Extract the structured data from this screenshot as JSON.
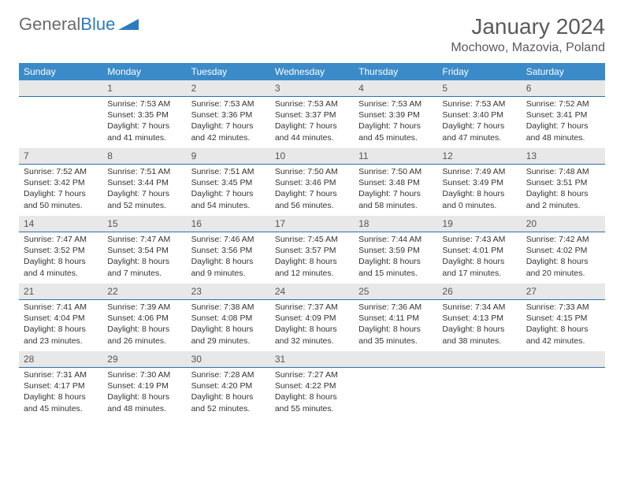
{
  "logo": {
    "text1": "General",
    "text2": "Blue"
  },
  "title": "January 2024",
  "location": "Mochowo, Mazovia, Poland",
  "colors": {
    "header_bg": "#3b8bc9",
    "header_text": "#ffffff",
    "daynum_bg": "#e8e8e8",
    "daynum_border": "#2f6fa8",
    "body_text": "#333333",
    "page_bg": "#ffffff",
    "logo_gray": "#6b6b6b",
    "logo_blue": "#2b7bbf",
    "title_color": "#5a5a5a"
  },
  "weekdays": [
    "Sunday",
    "Monday",
    "Tuesday",
    "Wednesday",
    "Thursday",
    "Friday",
    "Saturday"
  ],
  "weeks": [
    [
      null,
      {
        "n": "1",
        "sr": "Sunrise: 7:53 AM",
        "ss": "Sunset: 3:35 PM",
        "d1": "Daylight: 7 hours",
        "d2": "and 41 minutes."
      },
      {
        "n": "2",
        "sr": "Sunrise: 7:53 AM",
        "ss": "Sunset: 3:36 PM",
        "d1": "Daylight: 7 hours",
        "d2": "and 42 minutes."
      },
      {
        "n": "3",
        "sr": "Sunrise: 7:53 AM",
        "ss": "Sunset: 3:37 PM",
        "d1": "Daylight: 7 hours",
        "d2": "and 44 minutes."
      },
      {
        "n": "4",
        "sr": "Sunrise: 7:53 AM",
        "ss": "Sunset: 3:39 PM",
        "d1": "Daylight: 7 hours",
        "d2": "and 45 minutes."
      },
      {
        "n": "5",
        "sr": "Sunrise: 7:53 AM",
        "ss": "Sunset: 3:40 PM",
        "d1": "Daylight: 7 hours",
        "d2": "and 47 minutes."
      },
      {
        "n": "6",
        "sr": "Sunrise: 7:52 AM",
        "ss": "Sunset: 3:41 PM",
        "d1": "Daylight: 7 hours",
        "d2": "and 48 minutes."
      }
    ],
    [
      {
        "n": "7",
        "sr": "Sunrise: 7:52 AM",
        "ss": "Sunset: 3:42 PM",
        "d1": "Daylight: 7 hours",
        "d2": "and 50 minutes."
      },
      {
        "n": "8",
        "sr": "Sunrise: 7:51 AM",
        "ss": "Sunset: 3:44 PM",
        "d1": "Daylight: 7 hours",
        "d2": "and 52 minutes."
      },
      {
        "n": "9",
        "sr": "Sunrise: 7:51 AM",
        "ss": "Sunset: 3:45 PM",
        "d1": "Daylight: 7 hours",
        "d2": "and 54 minutes."
      },
      {
        "n": "10",
        "sr": "Sunrise: 7:50 AM",
        "ss": "Sunset: 3:46 PM",
        "d1": "Daylight: 7 hours",
        "d2": "and 56 minutes."
      },
      {
        "n": "11",
        "sr": "Sunrise: 7:50 AM",
        "ss": "Sunset: 3:48 PM",
        "d1": "Daylight: 7 hours",
        "d2": "and 58 minutes."
      },
      {
        "n": "12",
        "sr": "Sunrise: 7:49 AM",
        "ss": "Sunset: 3:49 PM",
        "d1": "Daylight: 8 hours",
        "d2": "and 0 minutes."
      },
      {
        "n": "13",
        "sr": "Sunrise: 7:48 AM",
        "ss": "Sunset: 3:51 PM",
        "d1": "Daylight: 8 hours",
        "d2": "and 2 minutes."
      }
    ],
    [
      {
        "n": "14",
        "sr": "Sunrise: 7:47 AM",
        "ss": "Sunset: 3:52 PM",
        "d1": "Daylight: 8 hours",
        "d2": "and 4 minutes."
      },
      {
        "n": "15",
        "sr": "Sunrise: 7:47 AM",
        "ss": "Sunset: 3:54 PM",
        "d1": "Daylight: 8 hours",
        "d2": "and 7 minutes."
      },
      {
        "n": "16",
        "sr": "Sunrise: 7:46 AM",
        "ss": "Sunset: 3:56 PM",
        "d1": "Daylight: 8 hours",
        "d2": "and 9 minutes."
      },
      {
        "n": "17",
        "sr": "Sunrise: 7:45 AM",
        "ss": "Sunset: 3:57 PM",
        "d1": "Daylight: 8 hours",
        "d2": "and 12 minutes."
      },
      {
        "n": "18",
        "sr": "Sunrise: 7:44 AM",
        "ss": "Sunset: 3:59 PM",
        "d1": "Daylight: 8 hours",
        "d2": "and 15 minutes."
      },
      {
        "n": "19",
        "sr": "Sunrise: 7:43 AM",
        "ss": "Sunset: 4:01 PM",
        "d1": "Daylight: 8 hours",
        "d2": "and 17 minutes."
      },
      {
        "n": "20",
        "sr": "Sunrise: 7:42 AM",
        "ss": "Sunset: 4:02 PM",
        "d1": "Daylight: 8 hours",
        "d2": "and 20 minutes."
      }
    ],
    [
      {
        "n": "21",
        "sr": "Sunrise: 7:41 AM",
        "ss": "Sunset: 4:04 PM",
        "d1": "Daylight: 8 hours",
        "d2": "and 23 minutes."
      },
      {
        "n": "22",
        "sr": "Sunrise: 7:39 AM",
        "ss": "Sunset: 4:06 PM",
        "d1": "Daylight: 8 hours",
        "d2": "and 26 minutes."
      },
      {
        "n": "23",
        "sr": "Sunrise: 7:38 AM",
        "ss": "Sunset: 4:08 PM",
        "d1": "Daylight: 8 hours",
        "d2": "and 29 minutes."
      },
      {
        "n": "24",
        "sr": "Sunrise: 7:37 AM",
        "ss": "Sunset: 4:09 PM",
        "d1": "Daylight: 8 hours",
        "d2": "and 32 minutes."
      },
      {
        "n": "25",
        "sr": "Sunrise: 7:36 AM",
        "ss": "Sunset: 4:11 PM",
        "d1": "Daylight: 8 hours",
        "d2": "and 35 minutes."
      },
      {
        "n": "26",
        "sr": "Sunrise: 7:34 AM",
        "ss": "Sunset: 4:13 PM",
        "d1": "Daylight: 8 hours",
        "d2": "and 38 minutes."
      },
      {
        "n": "27",
        "sr": "Sunrise: 7:33 AM",
        "ss": "Sunset: 4:15 PM",
        "d1": "Daylight: 8 hours",
        "d2": "and 42 minutes."
      }
    ],
    [
      {
        "n": "28",
        "sr": "Sunrise: 7:31 AM",
        "ss": "Sunset: 4:17 PM",
        "d1": "Daylight: 8 hours",
        "d2": "and 45 minutes."
      },
      {
        "n": "29",
        "sr": "Sunrise: 7:30 AM",
        "ss": "Sunset: 4:19 PM",
        "d1": "Daylight: 8 hours",
        "d2": "and 48 minutes."
      },
      {
        "n": "30",
        "sr": "Sunrise: 7:28 AM",
        "ss": "Sunset: 4:20 PM",
        "d1": "Daylight: 8 hours",
        "d2": "and 52 minutes."
      },
      {
        "n": "31",
        "sr": "Sunrise: 7:27 AM",
        "ss": "Sunset: 4:22 PM",
        "d1": "Daylight: 8 hours",
        "d2": "and 55 minutes."
      },
      null,
      null,
      null
    ]
  ]
}
